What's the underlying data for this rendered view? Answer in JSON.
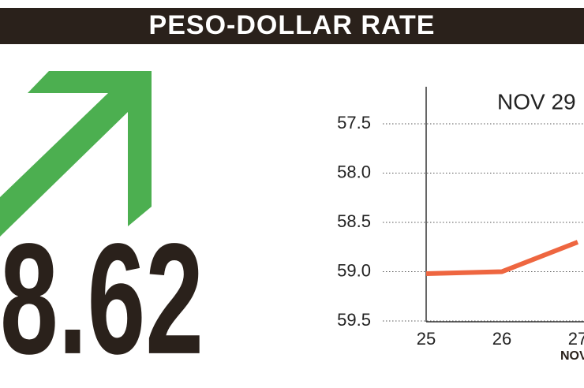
{
  "title": "PESO-DOLLAR RATE",
  "headline_value": "8.62",
  "chart_data": {
    "type": "line",
    "annotation": "NOV 29",
    "x_label": "NOV",
    "categories": [
      "25",
      "26",
      "27"
    ],
    "series": [
      {
        "name": null,
        "color": "#ee6640",
        "values": [
          59.02,
          59.0,
          58.7
        ]
      }
    ],
    "ylim": [
      57.5,
      59.5
    ],
    "y_inverted": true,
    "yticks": [
      57.5,
      {
        "value": 58,
        "label": "58.0"
      },
      58.5,
      {
        "value": 59,
        "label": "59.0"
      },
      59.5
    ],
    "grid": true
  }
}
